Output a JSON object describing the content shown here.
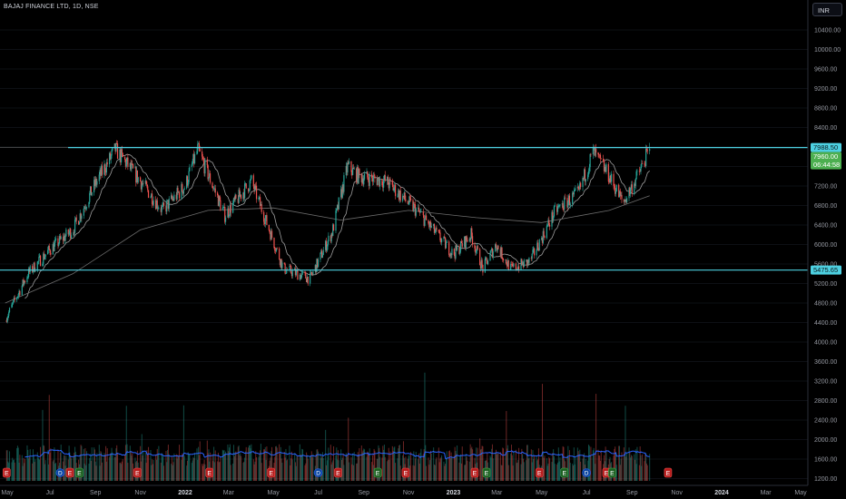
{
  "header": {
    "title": "BAJAJ FINANCE LTD, 1D, NSE",
    "currency": "INR"
  },
  "colors": {
    "up": "#26a69a",
    "down": "#ef5350",
    "hline": "#4dd0e1",
    "ma_fast": "#9e9e9e",
    "ma_slow": "#6d6d6d",
    "vol_ma": "#2962ff",
    "price_label": "#4caf50"
  },
  "price_labels": {
    "resistance": "7988.50",
    "current": "7960.00",
    "countdown": "06:44:58",
    "support": "5475.65"
  },
  "chart_data": {
    "type": "candlestick",
    "title": "BAJAJ FINANCE LTD, 1D, NSE",
    "y_axis_ticks": [
      "10400.00",
      "10000.00",
      "9600.00",
      "9200.00",
      "8800.00",
      "8400.00",
      "8000.00",
      "7600.00",
      "7200.00",
      "6800.00",
      "6400.00",
      "6000.00",
      "5600.00",
      "5200.00",
      "4800.00",
      "4400.00",
      "4000.00",
      "3600.00",
      "3200.00",
      "2800.00",
      "2400.00",
      "2000.00",
      "1600.00",
      "1200.00"
    ],
    "x_axis_labels": [
      "May",
      "Jul",
      "Sep",
      "Nov",
      "2022",
      "Mar",
      "May",
      "Jul",
      "Sep",
      "Nov",
      "2023",
      "Mar",
      "May",
      "Jul",
      "Sep",
      "Nov",
      "2024",
      "Mar",
      "May"
    ],
    "horizontal_lines": [
      7988.5,
      5475.65
    ],
    "price_anchors": {
      "x": [
        "2021-05-01",
        "2021-06-01",
        "2021-07-01",
        "2021-08-01",
        "2021-09-01",
        "2021-09-28",
        "2021-11-01",
        "2021-12-01",
        "2022-01-01",
        "2022-01-18",
        "2022-02-24",
        "2022-04-01",
        "2022-05-15",
        "2022-06-20",
        "2022-07-20",
        "2022-08-10",
        "2022-08-25",
        "2022-10-01",
        "2022-11-15",
        "2023-01-01",
        "2023-01-25",
        "2023-02-10",
        "2023-02-28",
        "2023-03-20",
        "2023-04-15",
        "2023-05-20",
        "2023-06-20",
        "2023-07-10",
        "2023-08-01",
        "2023-08-20",
        "2023-09-10",
        "2023-09-25"
      ],
      "close": [
        4450,
        5400,
        5900,
        6300,
        7250,
        7950,
        7300,
        6700,
        7200,
        7950,
        6600,
        7300,
        5500,
        5300,
        6250,
        7600,
        7400,
        7300,
        6650,
        5800,
        6200,
        5500,
        6000,
        5500,
        5650,
        6700,
        7050,
        7900,
        7400,
        6850,
        7450,
        7960
      ]
    },
    "ma_slow_anchors": {
      "x": [
        "2021-05-01",
        "2021-08-01",
        "2021-11-01",
        "2022-02-01",
        "2022-05-01",
        "2022-08-01",
        "2022-11-01",
        "2023-02-01",
        "2023-05-01",
        "2023-08-01",
        "2023-09-25"
      ],
      "value": [
        4800,
        5400,
        6300,
        6700,
        6750,
        6500,
        6700,
        6550,
        6450,
        6700,
        7000
      ]
    },
    "volume": {
      "axis_style": "relative",
      "baseline_ratio": 0.15
    },
    "event_markers": {
      "earnings": [
        "2021-05-03",
        "2021-07-28",
        "2021-10-28",
        "2022-02-03",
        "2022-04-28",
        "2022-07-28",
        "2022-10-28",
        "2023-01-30",
        "2023-04-28",
        "2023-07-28",
        "2023-10-20"
      ],
      "dividends": [
        "2021-07-15",
        "2022-07-01",
        "2023-07-01"
      ],
      "other": [
        "2021-08-10",
        "2022-09-20",
        "2023-02-15",
        "2023-06-01",
        "2023-08-05"
      ]
    }
  }
}
